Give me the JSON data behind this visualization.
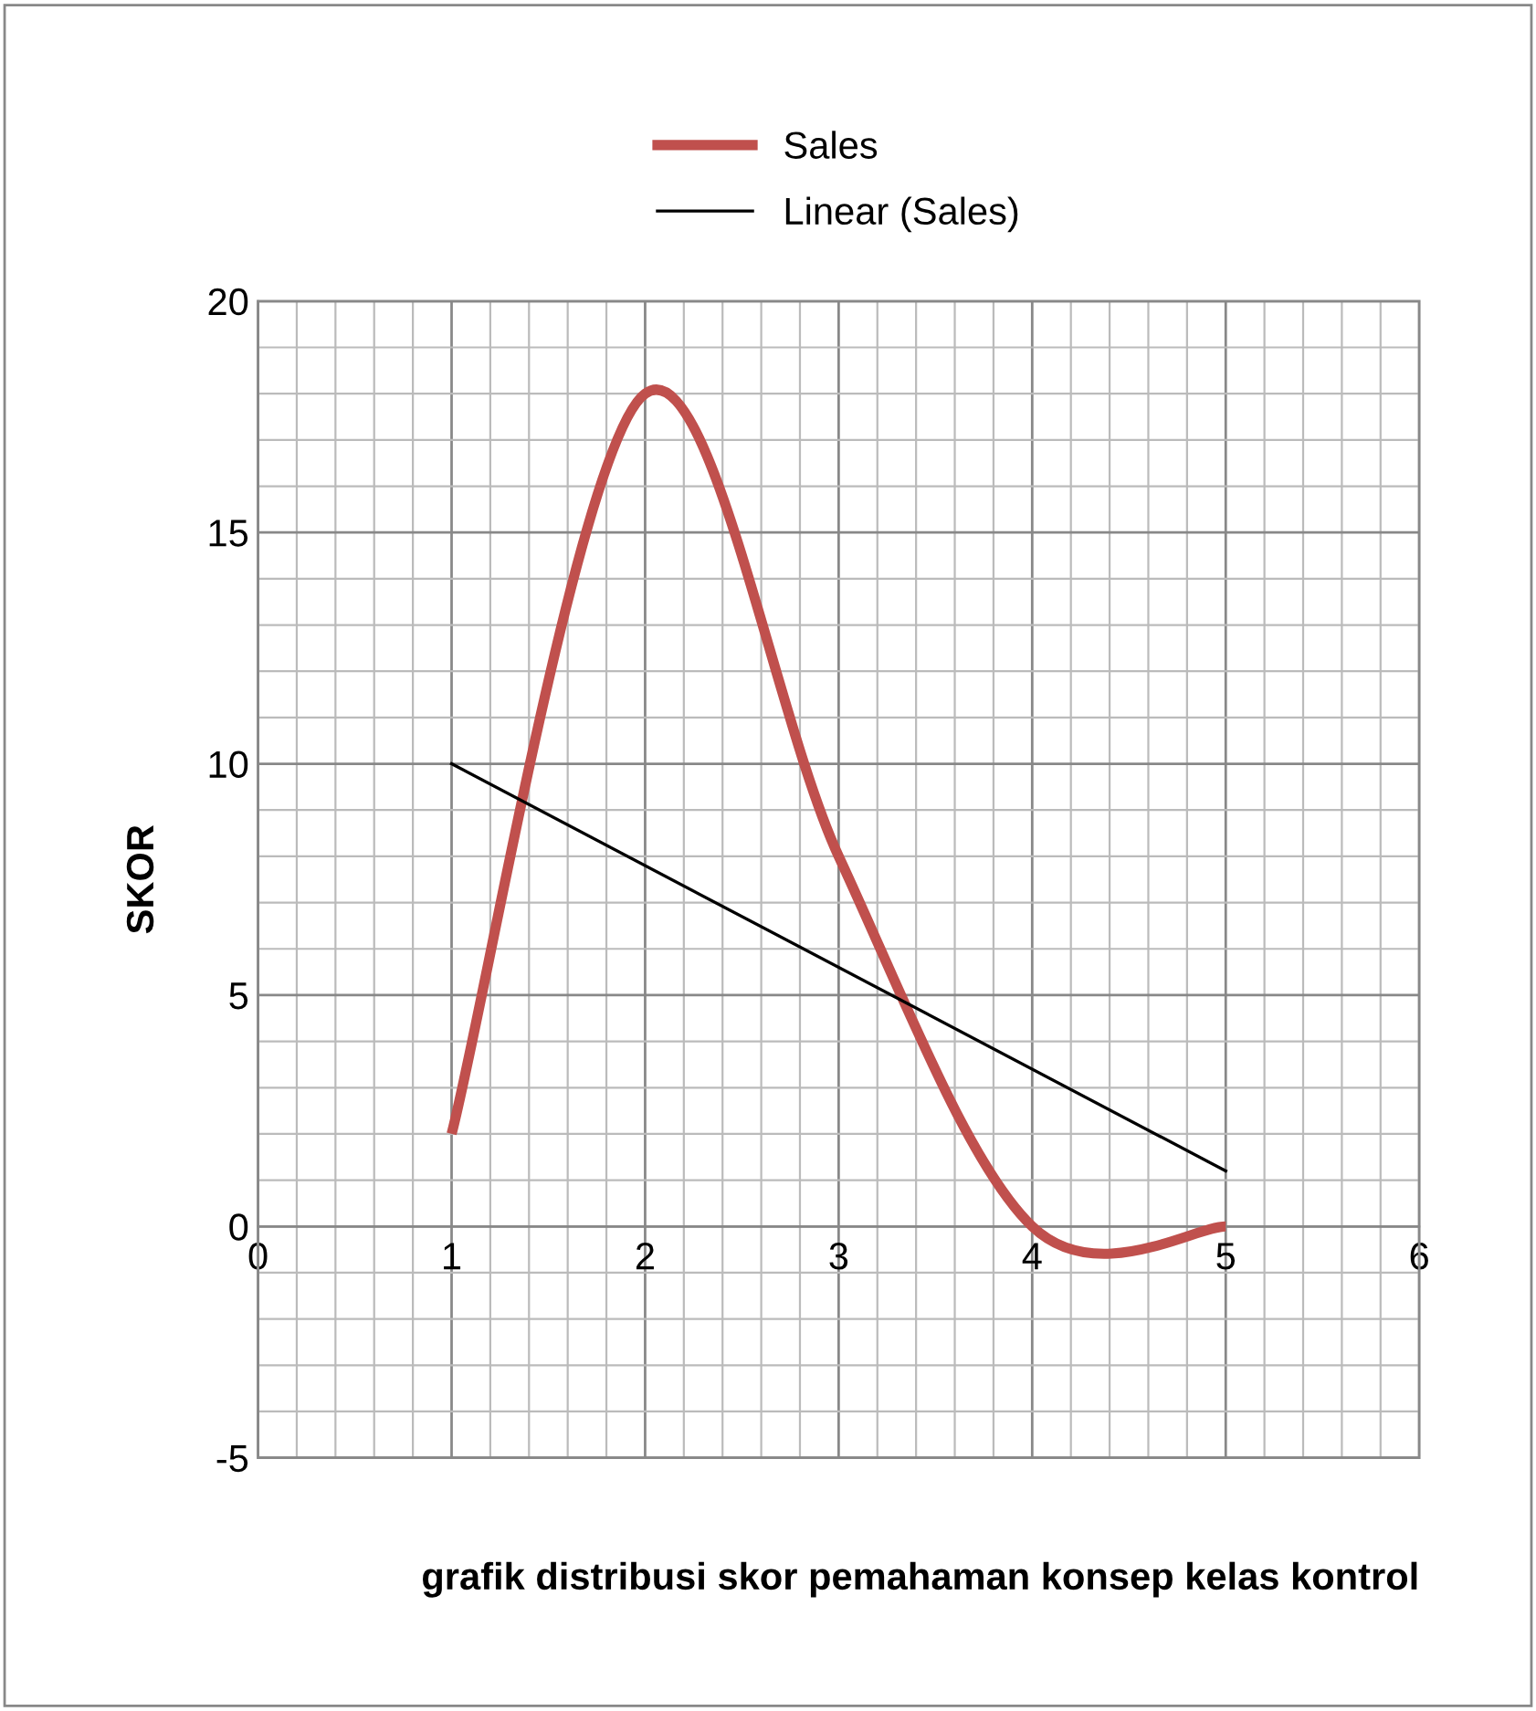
{
  "chart_data": {
    "type": "line",
    "xlabel": "grafik distribusi skor pemahaman konsep kelas kontrol",
    "ylabel": "SKOR",
    "x": [
      1,
      2,
      3,
      4,
      5
    ],
    "series": [
      {
        "name": "Sales",
        "color": "#c0504d",
        "values": [
          2,
          18,
          8,
          0,
          0
        ]
      },
      {
        "name": "Linear (Sales)",
        "color": "#000000",
        "x": [
          1,
          5
        ],
        "values": [
          10,
          1.2
        ]
      }
    ],
    "xlim": [
      0,
      6
    ],
    "xticks": [
      0,
      1,
      2,
      3,
      4,
      5,
      6
    ],
    "ylim": [
      -5,
      20
    ],
    "yticks": [
      -5,
      0,
      5,
      10,
      15,
      20
    ],
    "grid": true,
    "legend": "top",
    "marker": "none",
    "line_style": "solid"
  }
}
